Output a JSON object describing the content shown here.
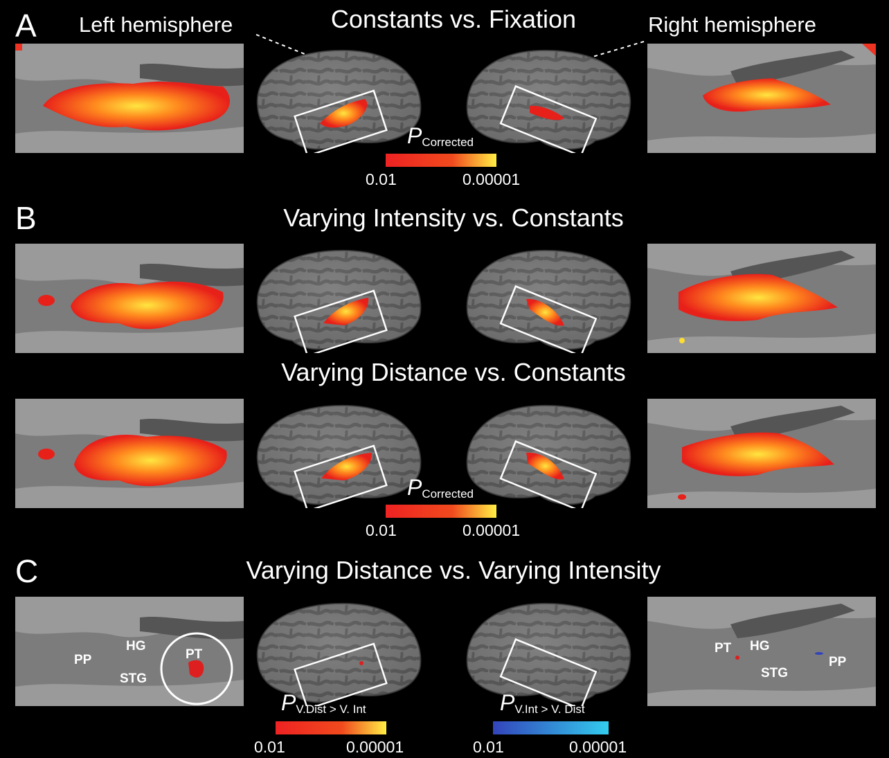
{
  "panels": {
    "a": {
      "letter": "A",
      "title": "Constants vs. Fixation",
      "left_label": "Left hemisphere",
      "right_label": "Right hemisphere"
    },
    "b": {
      "letter": "B",
      "title1": "Varying Intensity vs. Constants",
      "title2": "Varying Distance vs. Constants"
    },
    "c": {
      "letter": "C",
      "title": "Varying Distance vs. Varying Intensity",
      "left_rois": {
        "pp": "PP",
        "hg": "HG",
        "stg": "STG",
        "pt": "PT"
      },
      "right_rois": {
        "pt": "PT",
        "hg": "HG",
        "stg": "STG",
        "pp": "PP"
      }
    }
  },
  "colorbars": {
    "a": {
      "p": "P",
      "sub": "Corrected",
      "min": "0.01",
      "max": "0.00001",
      "from": "#ee2222",
      "to": "#ffee44"
    },
    "b": {
      "p": "P",
      "sub": "Corrected",
      "min": "0.01",
      "max": "0.00001",
      "from": "#ee2222",
      "to": "#ffee44"
    },
    "c_warm": {
      "p": "P",
      "sub": "V.Dist > V. Int",
      "min": "0.01",
      "max": "0.00001",
      "from": "#ee2222",
      "to": "#ffee44"
    },
    "c_cool": {
      "p": "P",
      "sub": "V.Int > V. Dist",
      "min": "0.01",
      "max": "0.00001",
      "from": "#3344bb",
      "to": "#33ccee"
    }
  }
}
